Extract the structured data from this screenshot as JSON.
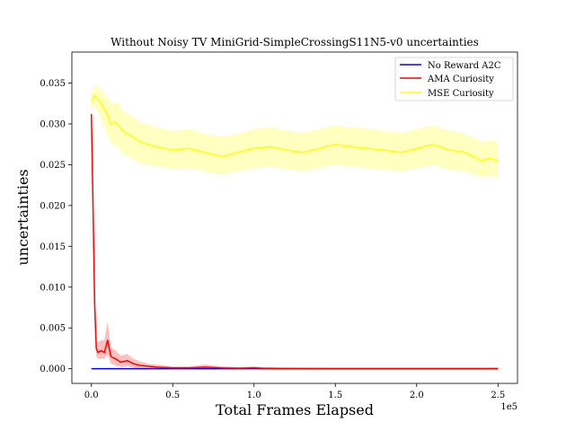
{
  "chart_data": {
    "type": "line",
    "title": "Without Noisy TV MiniGrid-SimpleCrossingS11N5-v0 uncertainties",
    "xlabel": "Total Frames Elapsed",
    "ylabel": "uncertainties",
    "x_offset_label": "1e5",
    "xlim": [
      -0.12,
      2.62
    ],
    "ylim": [
      -0.0018,
      0.0388
    ],
    "x_ticks": [
      0.0,
      0.5,
      1.0,
      1.5,
      2.0,
      2.5
    ],
    "x_tick_labels": [
      "0.0",
      "0.5",
      "1.0",
      "1.5",
      "2.0",
      "2.5"
    ],
    "y_ticks": [
      0.0,
      0.005,
      0.01,
      0.015,
      0.02,
      0.025,
      0.03,
      0.035
    ],
    "y_tick_labels": [
      "0.000",
      "0.005",
      "0.010",
      "0.015",
      "0.020",
      "0.025",
      "0.030",
      "0.035"
    ],
    "legend_position": "top-right",
    "series": [
      {
        "name": "No Reward A2C",
        "color": "#0000ff",
        "band_color": "#0000ff",
        "x": [
          0.0,
          0.5,
          1.0,
          1.5,
          2.0,
          2.5
        ],
        "y": [
          0.0,
          0.0,
          0.0,
          0.0,
          0.0,
          0.0
        ],
        "lower": [
          0.0,
          0.0,
          0.0,
          0.0,
          0.0,
          0.0
        ],
        "upper": [
          0.0,
          0.0,
          0.0,
          0.0,
          0.0,
          0.0
        ]
      },
      {
        "name": "AMA Curiosity",
        "color": "#ff0000",
        "band_color": "#ff0000",
        "x": [
          0.0,
          0.01,
          0.02,
          0.03,
          0.04,
          0.06,
          0.08,
          0.1,
          0.12,
          0.15,
          0.18,
          0.22,
          0.26,
          0.3,
          0.35,
          0.4,
          0.5,
          0.6,
          0.7,
          0.8,
          0.9,
          1.0,
          1.05,
          1.2,
          1.5,
          2.0,
          2.5
        ],
        "y": [
          0.0312,
          0.02,
          0.008,
          0.0025,
          0.002,
          0.0022,
          0.002,
          0.0035,
          0.0015,
          0.0012,
          0.0008,
          0.001,
          0.0006,
          0.0004,
          0.0003,
          0.0002,
          0.0001,
          0.0001,
          0.0002,
          0.0001,
          5e-05,
          0.0001,
          5e-05,
          3e-05,
          2e-05,
          1e-05,
          1e-05
        ],
        "lower": [
          0.0312,
          0.017,
          0.006,
          0.0015,
          0.0012,
          0.0013,
          0.0012,
          0.0018,
          0.0006,
          0.0004,
          0.0002,
          0.0003,
          0.0001,
          0.0,
          0.0,
          0.0,
          0.0,
          0.0,
          0.0,
          0.0,
          0.0,
          0.0,
          0.0,
          0.0,
          0.0,
          0.0,
          0.0
        ],
        "upper": [
          0.0312,
          0.023,
          0.011,
          0.0035,
          0.0032,
          0.0035,
          0.0035,
          0.0058,
          0.0026,
          0.0022,
          0.0016,
          0.0018,
          0.0012,
          0.0009,
          0.0006,
          0.0005,
          0.0003,
          0.0003,
          0.0005,
          0.0003,
          0.0002,
          0.0003,
          0.0002,
          0.0001,
          0.0001,
          0.0001,
          0.0001
        ]
      },
      {
        "name": "MSE Curiosity",
        "color": "#ffff00",
        "band_color": "#ffff00",
        "x": [
          0.0,
          0.02,
          0.04,
          0.06,
          0.08,
          0.1,
          0.12,
          0.15,
          0.2,
          0.25,
          0.3,
          0.4,
          0.5,
          0.6,
          0.7,
          0.8,
          0.9,
          1.0,
          1.1,
          1.2,
          1.3,
          1.4,
          1.5,
          1.6,
          1.7,
          1.8,
          1.9,
          2.0,
          2.1,
          2.2,
          2.3,
          2.4,
          2.45,
          2.5
        ],
        "y": [
          0.0328,
          0.0335,
          0.033,
          0.0325,
          0.0318,
          0.031,
          0.03,
          0.0302,
          0.029,
          0.0285,
          0.0278,
          0.0272,
          0.0268,
          0.027,
          0.0265,
          0.026,
          0.0265,
          0.027,
          0.0272,
          0.0268,
          0.0265,
          0.027,
          0.0275,
          0.0272,
          0.027,
          0.0268,
          0.0265,
          0.027,
          0.0275,
          0.0268,
          0.0265,
          0.0255,
          0.0258,
          0.0255
        ],
        "lower": [
          0.0318,
          0.0322,
          0.0315,
          0.0305,
          0.0295,
          0.0285,
          0.0275,
          0.0275,
          0.0262,
          0.0258,
          0.0252,
          0.0248,
          0.0245,
          0.0246,
          0.0242,
          0.0238,
          0.0242,
          0.0246,
          0.0248,
          0.0245,
          0.0242,
          0.0246,
          0.025,
          0.0248,
          0.0246,
          0.0244,
          0.0242,
          0.0246,
          0.025,
          0.0244,
          0.0242,
          0.0235,
          0.0236,
          0.0235
        ],
        "upper": [
          0.0338,
          0.0348,
          0.0345,
          0.0342,
          0.0338,
          0.0332,
          0.0325,
          0.0328,
          0.0315,
          0.031,
          0.0302,
          0.0296,
          0.0292,
          0.0294,
          0.0288,
          0.0284,
          0.0288,
          0.0294,
          0.0296,
          0.0292,
          0.0289,
          0.0294,
          0.0298,
          0.0296,
          0.0294,
          0.0292,
          0.0289,
          0.0294,
          0.0298,
          0.0292,
          0.0288,
          0.0278,
          0.028,
          0.0278
        ]
      }
    ]
  }
}
